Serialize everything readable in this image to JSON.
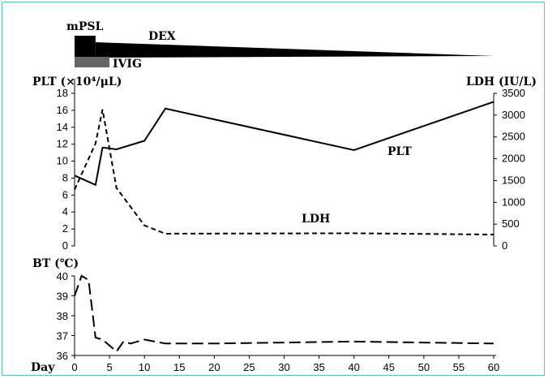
{
  "chart_data": [
    {
      "type": "timeline",
      "treatments": [
        {
          "name": "mPSL",
          "start": 0,
          "end": 3
        },
        {
          "name": "IVIG",
          "start": 0,
          "end": 5
        },
        {
          "name": "DEX",
          "start": 3,
          "end": 60
        }
      ]
    },
    {
      "type": "line",
      "ylabel_left": "PLT (×10⁴/μL)",
      "ylabel_right": "LDH (IU/L)",
      "ylim_left": [
        0,
        18
      ],
      "ylim_right": [
        0,
        3500
      ],
      "yticks_left": [
        "0",
        "2",
        "4",
        "6",
        "8",
        "10",
        "12",
        "14",
        "16",
        "18"
      ],
      "yticks_right": [
        "0",
        "500",
        "1000",
        "1500",
        "2000",
        "2500",
        "3000",
        "3500"
      ],
      "series": [
        {
          "name": "PLT",
          "axis": "left",
          "style": "solid",
          "x": [
            0,
            3,
            4,
            6,
            10,
            13,
            40,
            60
          ],
          "y": [
            8.3,
            7.2,
            11.6,
            11.4,
            12.4,
            16.2,
            11.3,
            17.0
          ]
        },
        {
          "name": "LDH",
          "axis": "right",
          "style": "dashed",
          "x": [
            0,
            3,
            4,
            6,
            10,
            13,
            40,
            60
          ],
          "y": [
            1290,
            2350,
            3130,
            1330,
            470,
            280,
            290,
            260
          ]
        }
      ]
    },
    {
      "type": "line",
      "ylabel": "BT (℃)",
      "ylim": [
        36,
        40
      ],
      "yticks": [
        "36",
        "37",
        "38",
        "39",
        "40"
      ],
      "series": [
        {
          "name": "BT",
          "style": "long-dash",
          "x": [
            0,
            1,
            2,
            3,
            4,
            6,
            7,
            8,
            10,
            13,
            20,
            30,
            40,
            50,
            60
          ],
          "y": [
            39.0,
            40.0,
            39.8,
            36.9,
            36.8,
            36.2,
            36.7,
            36.6,
            36.8,
            36.6,
            36.6,
            36.65,
            36.7,
            36.65,
            36.6
          ]
        }
      ]
    }
  ],
  "xaxis": {
    "label": "Day",
    "xlim": [
      0,
      60
    ],
    "ticks": [
      "0",
      "5",
      "10",
      "15",
      "20",
      "25",
      "30",
      "35",
      "40",
      "45",
      "50",
      "55",
      "60"
    ]
  }
}
